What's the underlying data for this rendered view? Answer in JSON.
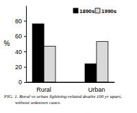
{
  "chart_data": {
    "type": "bar",
    "title": [
      "FIG. 1. Rural vs urban lightning-related deaths 100 yr apart,",
      "without unknown cases."
    ],
    "y_label": "%",
    "categories": [
      "Rural",
      "Urban"
    ],
    "series": [
      {
        "name": "1890s",
        "color": "#000000",
        "values": [
          76,
          24
        ]
      },
      {
        "name": "1990s",
        "color": "#d9d9d9",
        "values": [
          47,
          53
        ]
      }
    ],
    "ylim": [
      0,
      100
    ],
    "yticks": [
      0,
      20,
      40,
      60,
      80
    ],
    "legend": "top-right"
  }
}
